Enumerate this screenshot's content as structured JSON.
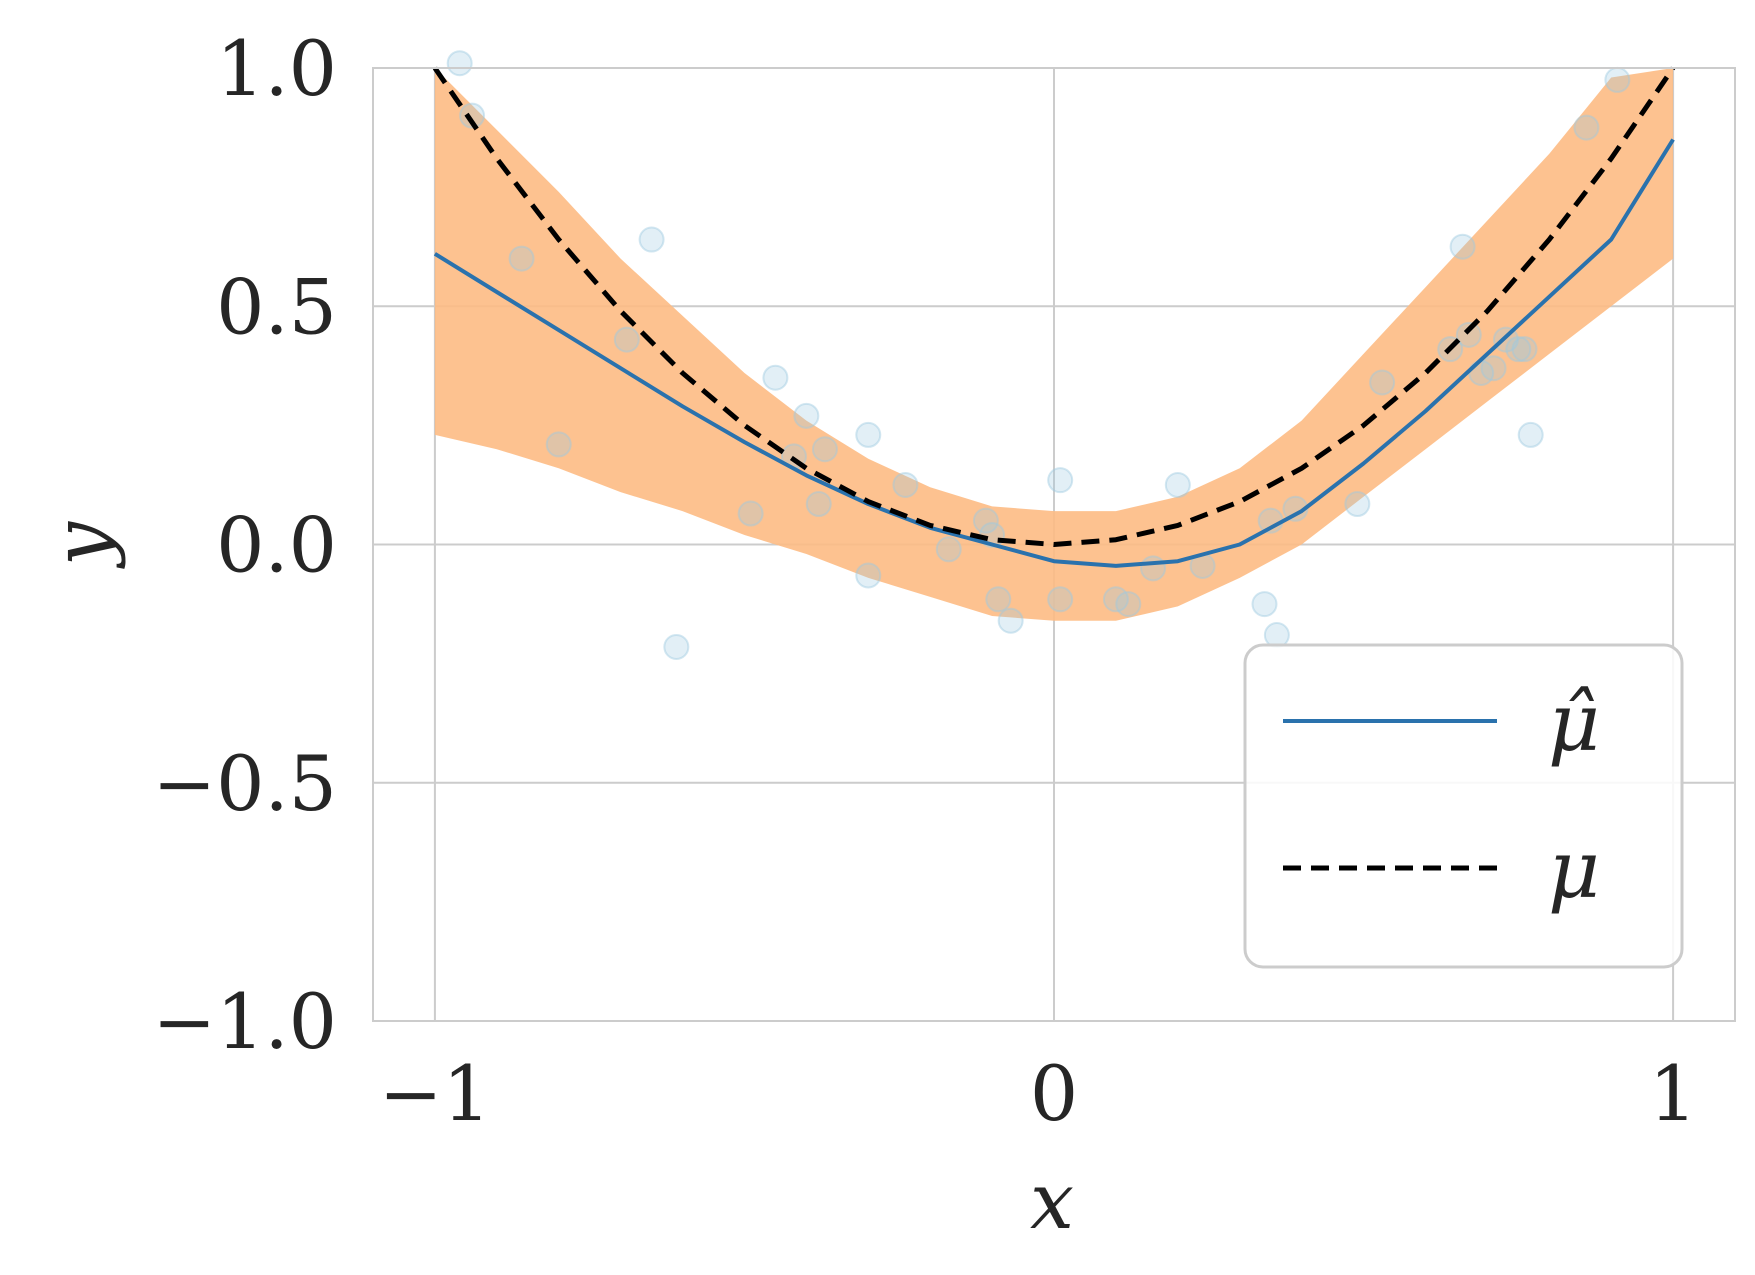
{
  "chart_data": {
    "type": "line",
    "title": "",
    "xlabel": "x",
    "ylabel": "y",
    "xlim": [
      -1.1,
      1.1
    ],
    "ylim": [
      -1.0,
      1.0
    ],
    "xticks": [
      -1,
      0,
      1
    ],
    "xtick_labels": [
      "−1",
      "0",
      "1"
    ],
    "yticks": [
      1.0,
      0.5,
      0.0,
      -0.5,
      -1.0
    ],
    "ytick_labels": [
      "1.0",
      "0.5",
      "0.0",
      "−0.5",
      "−1.0"
    ],
    "grid": true,
    "legend_position": "lower-right",
    "colors": {
      "mu_hat": "#2a72ad",
      "mu": "#000000",
      "band": "#fdbb84",
      "points": "#9ecae1",
      "grid": "#cccccc"
    },
    "series": [
      {
        "name": "μ̂",
        "style": "solid",
        "x": [
          -1.0,
          -0.9,
          -0.8,
          -0.7,
          -0.6,
          -0.5,
          -0.4,
          -0.3,
          -0.2,
          -0.1,
          0.0,
          0.1,
          0.2,
          0.3,
          0.4,
          0.5,
          0.6,
          0.7,
          0.8,
          0.9,
          1.0
        ],
        "y": [
          0.61,
          0.53,
          0.45,
          0.37,
          0.29,
          0.215,
          0.145,
          0.085,
          0.035,
          0.0,
          -0.035,
          -0.045,
          -0.035,
          0.0,
          0.07,
          0.17,
          0.28,
          0.4,
          0.52,
          0.64,
          0.85
        ]
      },
      {
        "name": "μ",
        "style": "dashed",
        "x": [
          -1.0,
          -0.9,
          -0.8,
          -0.7,
          -0.6,
          -0.5,
          -0.4,
          -0.3,
          -0.2,
          -0.1,
          0.0,
          0.1,
          0.2,
          0.3,
          0.4,
          0.5,
          0.6,
          0.7,
          0.8,
          0.9,
          1.0
        ],
        "y": [
          1.0,
          0.81,
          0.64,
          0.49,
          0.36,
          0.25,
          0.16,
          0.09,
          0.04,
          0.01,
          0.0,
          0.01,
          0.04,
          0.09,
          0.16,
          0.25,
          0.36,
          0.49,
          0.64,
          0.81,
          1.0
        ]
      }
    ],
    "band": {
      "x": [
        -1.0,
        -0.9,
        -0.8,
        -0.7,
        -0.6,
        -0.5,
        -0.4,
        -0.3,
        -0.2,
        -0.1,
        0.0,
        0.1,
        0.2,
        0.3,
        0.4,
        0.5,
        0.6,
        0.7,
        0.8,
        0.9,
        1.0
      ],
      "upper": [
        1.0,
        0.87,
        0.74,
        0.6,
        0.48,
        0.36,
        0.26,
        0.18,
        0.12,
        0.08,
        0.07,
        0.07,
        0.1,
        0.16,
        0.26,
        0.4,
        0.54,
        0.68,
        0.82,
        0.98,
        1.0
      ],
      "lower": [
        0.23,
        0.2,
        0.16,
        0.11,
        0.07,
        0.02,
        -0.02,
        -0.07,
        -0.11,
        -0.15,
        -0.16,
        -0.16,
        -0.13,
        -0.07,
        0.0,
        0.1,
        0.2,
        0.3,
        0.4,
        0.5,
        0.6
      ]
    },
    "points": [
      [
        -0.96,
        1.01
      ],
      [
        -0.94,
        0.9
      ],
      [
        -0.86,
        0.6
      ],
      [
        -0.8,
        0.21
      ],
      [
        -0.69,
        0.43
      ],
      [
        -0.65,
        0.64
      ],
      [
        -0.61,
        -0.215
      ],
      [
        -0.49,
        0.065
      ],
      [
        -0.45,
        0.35
      ],
      [
        -0.4,
        0.27
      ],
      [
        -0.42,
        0.185
      ],
      [
        -0.37,
        0.2
      ],
      [
        -0.38,
        0.085
      ],
      [
        -0.3,
        0.23
      ],
      [
        -0.3,
        -0.065
      ],
      [
        -0.24,
        0.125
      ],
      [
        -0.17,
        -0.01
      ],
      [
        -0.11,
        0.05
      ],
      [
        -0.1,
        0.02
      ],
      [
        -0.09,
        -0.115
      ],
      [
        -0.07,
        -0.16
      ],
      [
        0.01,
        0.135
      ],
      [
        0.01,
        -0.115
      ],
      [
        0.1,
        -0.115
      ],
      [
        0.12,
        -0.125
      ],
      [
        0.16,
        -0.05
      ],
      [
        0.2,
        0.125
      ],
      [
        0.24,
        -0.045
      ],
      [
        0.34,
        -0.125
      ],
      [
        0.36,
        -0.19
      ],
      [
        0.35,
        0.05
      ],
      [
        0.39,
        0.075
      ],
      [
        0.49,
        0.085
      ],
      [
        0.53,
        0.34
      ],
      [
        0.66,
        0.625
      ],
      [
        0.64,
        0.41
      ],
      [
        0.67,
        0.44
      ],
      [
        0.69,
        0.36
      ],
      [
        0.71,
        0.37
      ],
      [
        0.73,
        0.43
      ],
      [
        0.75,
        0.41
      ],
      [
        0.76,
        0.41
      ],
      [
        0.77,
        0.23
      ],
      [
        0.86,
        0.875
      ],
      [
        0.91,
        0.975
      ]
    ]
  }
}
